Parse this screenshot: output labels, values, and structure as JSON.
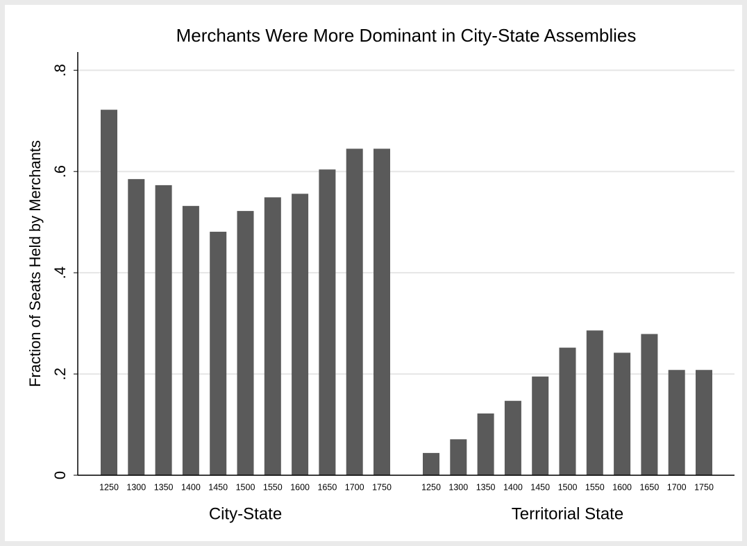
{
  "chart_data": {
    "type": "bar",
    "title": "Merchants Were More Dominant in City-State Assemblies",
    "y_label": "Fraction of Seats Held by Merchants",
    "color": "#5a5a5a",
    "grid": true,
    "ylim": [
      0,
      0.836
    ],
    "yticks": [
      0,
      {
        "value": 0.2,
        "label": ".2"
      },
      {
        "value": 0.4,
        "label": ".4"
      },
      {
        "value": 0.6,
        "label": ".6"
      },
      {
        "value": 0.8,
        "label": ".8"
      }
    ],
    "groups": [
      {
        "name": "City-State",
        "categories": [
          "1250",
          "1300",
          "1350",
          "1400",
          "1450",
          "1500",
          "1550",
          "1600",
          "1650",
          "1700",
          "1750"
        ],
        "values": [
          0.722,
          0.585,
          0.573,
          0.532,
          0.481,
          0.522,
          0.549,
          0.556,
          0.604,
          0.645,
          0.645
        ]
      },
      {
        "name": "Territorial State",
        "categories": [
          "1250",
          "1300",
          "1350",
          "1400",
          "1450",
          "1500",
          "1550",
          "1600",
          "1650",
          "1700",
          "1750"
        ],
        "values": [
          0.044,
          0.071,
          0.122,
          0.147,
          0.195,
          0.252,
          0.286,
          0.242,
          0.279,
          0.208,
          0.208
        ]
      }
    ]
  }
}
